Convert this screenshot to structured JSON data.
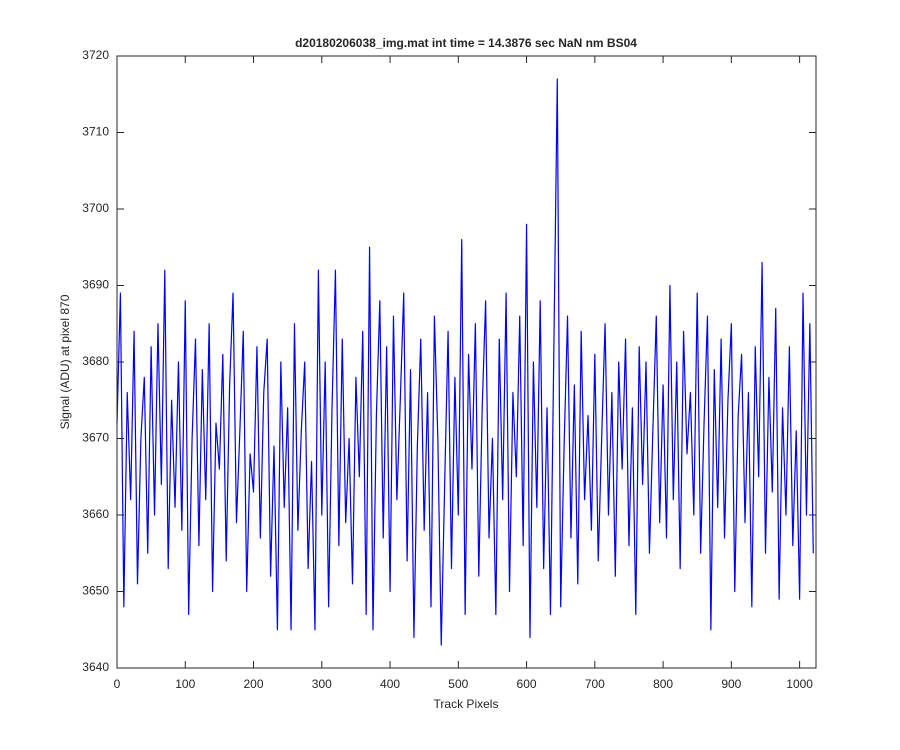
{
  "chart_data": {
    "type": "line",
    "title": "d20180206038_img.mat int time = 14.3876 sec  NaN nm BS04",
    "x_label": "Track Pixels",
    "y_label": "Signal (ADU) at pixel 870",
    "xlim": [
      0,
      1024
    ],
    "ylim": [
      3640,
      3720
    ],
    "xticks": [
      0,
      100,
      200,
      300,
      400,
      500,
      600,
      700,
      800,
      900,
      1000
    ],
    "yticks": [
      3640,
      3650,
      3660,
      3670,
      3680,
      3690,
      3700,
      3710,
      3720
    ],
    "x": [
      0,
      5,
      10,
      15,
      20,
      25,
      30,
      35,
      40,
      45,
      50,
      55,
      60,
      65,
      70,
      75,
      80,
      85,
      90,
      95,
      100,
      105,
      110,
      115,
      120,
      125,
      130,
      135,
      140,
      145,
      150,
      155,
      160,
      165,
      170,
      175,
      180,
      185,
      190,
      195,
      200,
      205,
      210,
      215,
      220,
      225,
      230,
      235,
      240,
      245,
      250,
      255,
      260,
      265,
      270,
      275,
      280,
      285,
      290,
      295,
      300,
      305,
      310,
      315,
      320,
      325,
      330,
      335,
      340,
      345,
      350,
      355,
      360,
      365,
      370,
      375,
      380,
      385,
      390,
      395,
      400,
      405,
      410,
      415,
      420,
      425,
      430,
      435,
      440,
      445,
      450,
      455,
      460,
      465,
      470,
      475,
      480,
      485,
      490,
      495,
      500,
      505,
      510,
      515,
      520,
      525,
      530,
      535,
      540,
      545,
      550,
      555,
      560,
      565,
      570,
      575,
      580,
      585,
      590,
      595,
      600,
      605,
      610,
      615,
      620,
      625,
      630,
      635,
      640,
      645,
      650,
      655,
      660,
      665,
      670,
      675,
      680,
      685,
      690,
      695,
      700,
      705,
      710,
      715,
      720,
      725,
      730,
      735,
      740,
      745,
      750,
      755,
      760,
      765,
      770,
      775,
      780,
      785,
      790,
      795,
      800,
      805,
      810,
      815,
      820,
      825,
      830,
      835,
      840,
      845,
      850,
      855,
      860,
      865,
      870,
      875,
      880,
      885,
      890,
      895,
      900,
      905,
      910,
      915,
      920,
      925,
      930,
      935,
      940,
      945,
      950,
      955,
      960,
      965,
      970,
      975,
      980,
      985,
      990,
      995,
      1000,
      1005,
      1010,
      1015,
      1020
    ],
    "series": [
      {
        "color": "#0000ff",
        "values": [
          3672,
          3689,
          3648,
          3676,
          3662,
          3684,
          3651,
          3670,
          3678,
          3655,
          3682,
          3660,
          3685,
          3664,
          3692,
          3653,
          3675,
          3661,
          3680,
          3658,
          3688,
          3647,
          3670,
          3683,
          3656,
          3679,
          3662,
          3685,
          3650,
          3672,
          3666,
          3681,
          3654,
          3677,
          3689,
          3659,
          3671,
          3684,
          3650,
          3668,
          3663,
          3682,
          3657,
          3676,
          3683,
          3652,
          3669,
          3645,
          3680,
          3661,
          3674,
          3645,
          3685,
          3658,
          3671,
          3680,
          3653,
          3667,
          3645,
          3692,
          3660,
          3680,
          3648,
          3674,
          3692,
          3656,
          3683,
          3659,
          3670,
          3651,
          3678,
          3665,
          3684,
          3647,
          3695,
          3645,
          3673,
          3688,
          3657,
          3682,
          3650,
          3686,
          3662,
          3675,
          3689,
          3654,
          3679,
          3644,
          3669,
          3683,
          3658,
          3676,
          3648,
          3686,
          3670,
          3643,
          3664,
          3684,
          3653,
          3678,
          3660,
          3696,
          3647,
          3681,
          3666,
          3685,
          3652,
          3674,
          3688,
          3657,
          3670,
          3647,
          3683,
          3662,
          3689,
          3650,
          3676,
          3665,
          3686,
          3656,
          3698,
          3644,
          3680,
          3661,
          3688,
          3653,
          3674,
          3647,
          3682,
          3717,
          3648,
          3669,
          3686,
          3657,
          3677,
          3651,
          3684,
          3662,
          3673,
          3658,
          3681,
          3654,
          3670,
          3685,
          3660,
          3676,
          3652,
          3680,
          3666,
          3683,
          3656,
          3674,
          3647,
          3682,
          3664,
          3680,
          3655,
          3671,
          3686,
          3659,
          3677,
          3657,
          3690,
          3662,
          3680,
          3653,
          3684,
          3668,
          3676,
          3660,
          3689,
          3655,
          3672,
          3686,
          3645,
          3679,
          3661,
          3683,
          3657,
          3675,
          3685,
          3650,
          3673,
          3681,
          3659,
          3676,
          3648,
          3682,
          3665,
          3693,
          3655,
          3678,
          3663,
          3687,
          3649,
          3674,
          3660,
          3682,
          3656,
          3671,
          3649,
          3689,
          3660,
          3685,
          3655
        ]
      }
    ]
  }
}
